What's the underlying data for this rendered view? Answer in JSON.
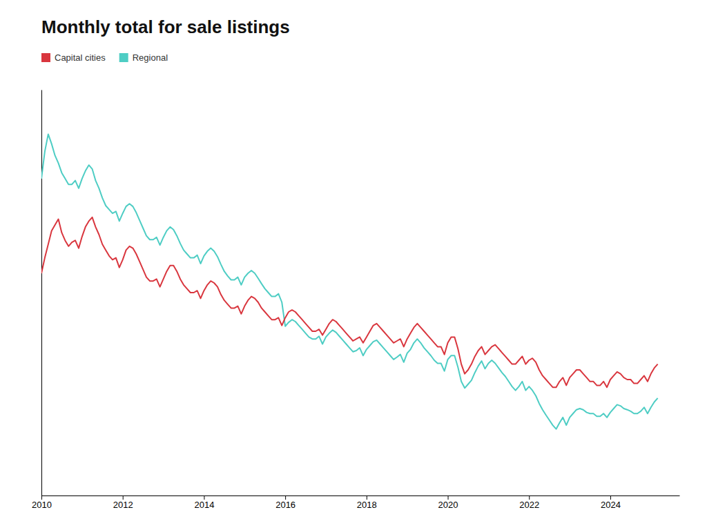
{
  "chart_data": {
    "type": "line",
    "title": "Monthly total for sale listings",
    "x": [
      2010.0,
      2010.083,
      2010.167,
      2010.25,
      2010.333,
      2010.417,
      2010.5,
      2010.583,
      2010.667,
      2010.75,
      2010.833,
      2010.917,
      2011.0,
      2011.083,
      2011.167,
      2011.25,
      2011.333,
      2011.417,
      2011.5,
      2011.583,
      2011.667,
      2011.75,
      2011.833,
      2011.917,
      2012.0,
      2012.083,
      2012.167,
      2012.25,
      2012.333,
      2012.417,
      2012.5,
      2012.583,
      2012.667,
      2012.75,
      2012.833,
      2012.917,
      2013.0,
      2013.083,
      2013.167,
      2013.25,
      2013.333,
      2013.417,
      2013.5,
      2013.583,
      2013.667,
      2013.75,
      2013.833,
      2013.917,
      2014.0,
      2014.083,
      2014.167,
      2014.25,
      2014.333,
      2014.417,
      2014.5,
      2014.583,
      2014.667,
      2014.75,
      2014.833,
      2014.917,
      2015.0,
      2015.083,
      2015.167,
      2015.25,
      2015.333,
      2015.417,
      2015.5,
      2015.583,
      2015.667,
      2015.75,
      2015.833,
      2015.917,
      2016.0,
      2016.083,
      2016.167,
      2016.25,
      2016.333,
      2016.417,
      2016.5,
      2016.583,
      2016.667,
      2016.75,
      2016.833,
      2016.917,
      2017.0,
      2017.083,
      2017.167,
      2017.25,
      2017.333,
      2017.417,
      2017.5,
      2017.583,
      2017.667,
      2017.75,
      2017.833,
      2017.917,
      2018.0,
      2018.083,
      2018.167,
      2018.25,
      2018.333,
      2018.417,
      2018.5,
      2018.583,
      2018.667,
      2018.75,
      2018.833,
      2018.917,
      2019.0,
      2019.083,
      2019.167,
      2019.25,
      2019.333,
      2019.417,
      2019.5,
      2019.583,
      2019.667,
      2019.75,
      2019.833,
      2019.917,
      2020.0,
      2020.083,
      2020.167,
      2020.25,
      2020.333,
      2020.417,
      2020.5,
      2020.583,
      2020.667,
      2020.75,
      2020.833,
      2020.917,
      2021.0,
      2021.083,
      2021.167,
      2021.25,
      2021.333,
      2021.417,
      2021.5,
      2021.583,
      2021.667,
      2021.75,
      2021.833,
      2021.917,
      2022.0,
      2022.083,
      2022.167,
      2022.25,
      2022.333,
      2022.417,
      2022.5,
      2022.583,
      2022.667,
      2022.75,
      2022.833,
      2022.917,
      2023.0,
      2023.083,
      2023.167,
      2023.25,
      2023.333,
      2023.417,
      2023.5,
      2023.583,
      2023.667,
      2023.75,
      2023.833,
      2023.917,
      2024.0,
      2024.083,
      2024.167,
      2024.25,
      2024.333,
      2024.417,
      2024.5,
      2024.583,
      2024.667,
      2024.75,
      2024.833,
      2024.917,
      2025.0,
      2025.083,
      2025.167
    ],
    "series": [
      {
        "name": "Capital cities",
        "color": "#d9363e",
        "values": [
          0.575,
          0.615,
          0.65,
          0.685,
          0.7,
          0.715,
          0.68,
          0.66,
          0.645,
          0.655,
          0.66,
          0.64,
          0.67,
          0.695,
          0.71,
          0.72,
          0.695,
          0.675,
          0.65,
          0.635,
          0.62,
          0.61,
          0.615,
          0.59,
          0.61,
          0.635,
          0.645,
          0.64,
          0.625,
          0.605,
          0.585,
          0.565,
          0.555,
          0.555,
          0.56,
          0.54,
          0.56,
          0.58,
          0.595,
          0.595,
          0.58,
          0.56,
          0.545,
          0.535,
          0.525,
          0.525,
          0.53,
          0.51,
          0.53,
          0.545,
          0.555,
          0.55,
          0.54,
          0.52,
          0.505,
          0.495,
          0.485,
          0.485,
          0.49,
          0.47,
          0.49,
          0.505,
          0.515,
          0.51,
          0.5,
          0.485,
          0.475,
          0.465,
          0.455,
          0.455,
          0.46,
          0.44,
          0.46,
          0.475,
          0.48,
          0.475,
          0.465,
          0.455,
          0.445,
          0.435,
          0.425,
          0.425,
          0.43,
          0.415,
          0.43,
          0.445,
          0.455,
          0.45,
          0.44,
          0.43,
          0.42,
          0.41,
          0.4,
          0.405,
          0.41,
          0.395,
          0.41,
          0.425,
          0.44,
          0.445,
          0.435,
          0.425,
          0.415,
          0.405,
          0.395,
          0.4,
          0.405,
          0.385,
          0.405,
          0.42,
          0.435,
          0.445,
          0.435,
          0.425,
          0.415,
          0.405,
          0.395,
          0.385,
          0.385,
          0.365,
          0.395,
          0.41,
          0.41,
          0.38,
          0.34,
          0.315,
          0.325,
          0.34,
          0.36,
          0.375,
          0.385,
          0.365,
          0.375,
          0.385,
          0.39,
          0.38,
          0.37,
          0.36,
          0.35,
          0.34,
          0.34,
          0.35,
          0.36,
          0.34,
          0.35,
          0.355,
          0.345,
          0.325,
          0.31,
          0.3,
          0.29,
          0.28,
          0.28,
          0.295,
          0.305,
          0.285,
          0.305,
          0.315,
          0.325,
          0.325,
          0.315,
          0.305,
          0.295,
          0.295,
          0.285,
          0.285,
          0.295,
          0.28,
          0.3,
          0.31,
          0.32,
          0.315,
          0.305,
          0.3,
          0.3,
          0.29,
          0.29,
          0.3,
          0.31,
          0.295,
          0.315,
          0.33,
          0.34
        ]
      },
      {
        "name": "Regional",
        "color": "#4ecdc4",
        "values": [
          0.82,
          0.89,
          0.935,
          0.91,
          0.88,
          0.86,
          0.835,
          0.82,
          0.805,
          0.805,
          0.815,
          0.795,
          0.82,
          0.84,
          0.855,
          0.845,
          0.815,
          0.795,
          0.77,
          0.75,
          0.74,
          0.73,
          0.735,
          0.71,
          0.73,
          0.748,
          0.755,
          0.748,
          0.732,
          0.712,
          0.692,
          0.672,
          0.662,
          0.662,
          0.668,
          0.648,
          0.668,
          0.685,
          0.695,
          0.688,
          0.672,
          0.652,
          0.635,
          0.625,
          0.615,
          0.615,
          0.622,
          0.6,
          0.62,
          0.632,
          0.64,
          0.632,
          0.618,
          0.598,
          0.58,
          0.568,
          0.558,
          0.558,
          0.565,
          0.545,
          0.565,
          0.575,
          0.582,
          0.575,
          0.562,
          0.548,
          0.535,
          0.525,
          0.515,
          0.515,
          0.522,
          0.5,
          0.438,
          0.448,
          0.455,
          0.45,
          0.44,
          0.43,
          0.42,
          0.41,
          0.405,
          0.405,
          0.412,
          0.392,
          0.41,
          0.42,
          0.428,
          0.422,
          0.412,
          0.402,
          0.392,
          0.382,
          0.372,
          0.375,
          0.382,
          0.362,
          0.378,
          0.388,
          0.398,
          0.402,
          0.392,
          0.382,
          0.372,
          0.362,
          0.352,
          0.358,
          0.365,
          0.345,
          0.368,
          0.378,
          0.395,
          0.405,
          0.395,
          0.382,
          0.372,
          0.362,
          0.35,
          0.342,
          0.342,
          0.322,
          0.352,
          0.362,
          0.362,
          0.332,
          0.295,
          0.278,
          0.288,
          0.298,
          0.318,
          0.335,
          0.348,
          0.328,
          0.342,
          0.35,
          0.342,
          0.33,
          0.318,
          0.308,
          0.295,
          0.282,
          0.272,
          0.282,
          0.295,
          0.272,
          0.282,
          0.272,
          0.258,
          0.238,
          0.222,
          0.208,
          0.195,
          0.182,
          0.172,
          0.188,
          0.202,
          0.182,
          0.202,
          0.212,
          0.222,
          0.225,
          0.222,
          0.215,
          0.212,
          0.212,
          0.205,
          0.205,
          0.212,
          0.202,
          0.215,
          0.225,
          0.235,
          0.232,
          0.225,
          0.222,
          0.218,
          0.212,
          0.212,
          0.218,
          0.228,
          0.212,
          0.228,
          0.242,
          0.252
        ]
      }
    ],
    "xlim": [
      2010.0,
      2025.7
    ],
    "ylim": [
      0,
      1.05
    ],
    "xticks": [
      2010,
      2012,
      2014,
      2016,
      2018,
      2020,
      2022,
      2024
    ],
    "tick_labels": "x",
    "grid": false,
    "legend": "top-left"
  }
}
